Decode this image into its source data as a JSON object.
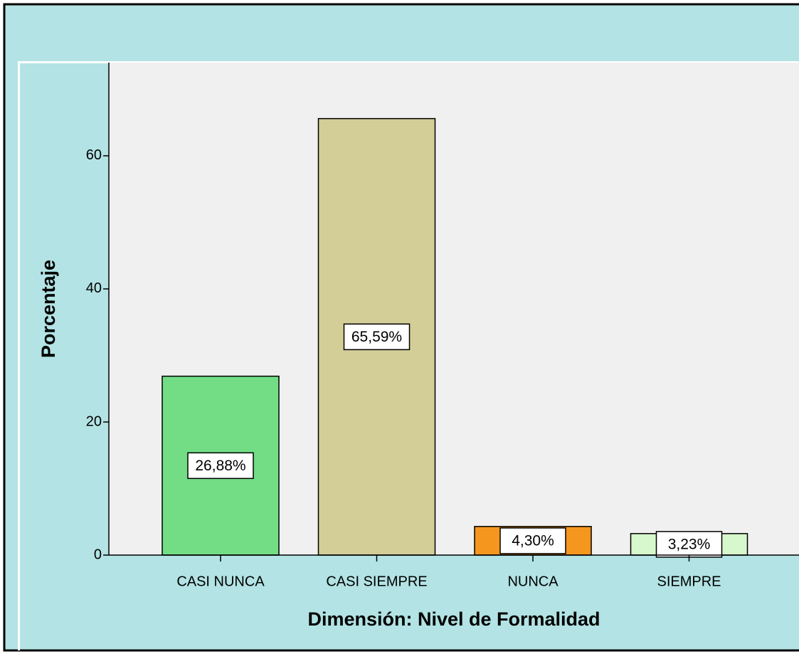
{
  "chart_data": {
    "type": "bar",
    "x_label": "Dimensión: Nivel de Formalidad",
    "y_label": "Porcentaje",
    "categories": [
      "CASI NUNCA",
      "CASI SIEMPRE",
      "NUNCA",
      "SIEMPRE"
    ],
    "values": [
      26.88,
      65.59,
      4.3,
      3.23
    ],
    "value_labels": [
      "26,88%",
      "65,59%",
      "4,30%",
      "3,23%"
    ],
    "colors": [
      "#72dd85",
      "#d3cd97",
      "#f5961f",
      "#d7f7cc"
    ],
    "ylim": [
      0,
      74
    ],
    "yticks": [
      0,
      20,
      40,
      60
    ],
    "grid": false
  }
}
